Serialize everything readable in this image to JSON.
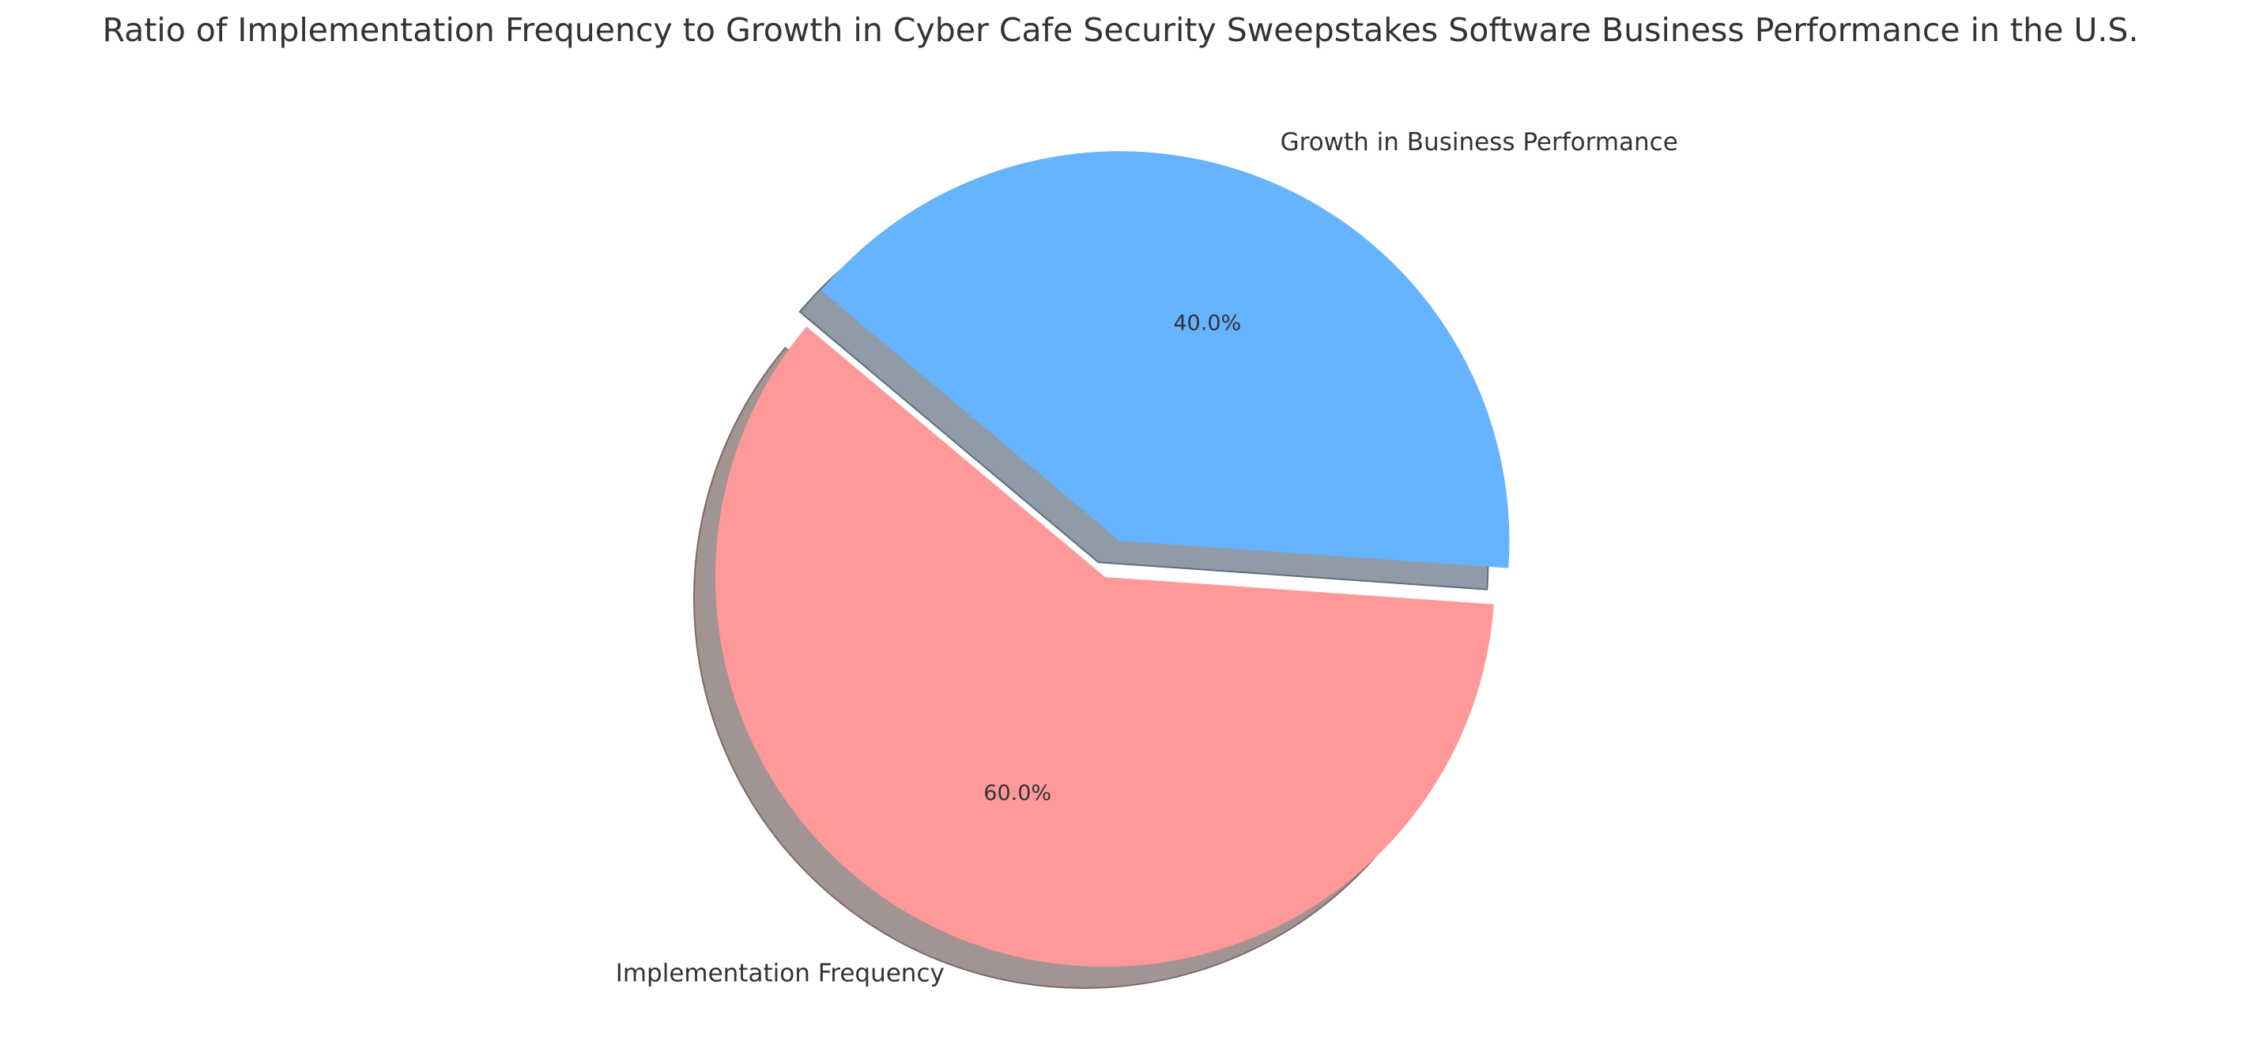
{
  "chart_data": {
    "type": "pie",
    "title": "Ratio of Implementation Frequency to Growth in Cyber Cafe Security Sweepstakes Software Business Performance in the U.S.",
    "categories": [
      "Implementation Frequency",
      "Growth in Business Performance"
    ],
    "values": [
      60,
      40
    ],
    "percent_labels": [
      "60.0%",
      "40.0%"
    ],
    "colors": [
      "#ff9999",
      "#66b3ff"
    ],
    "explode": [
      0,
      0.1
    ],
    "start_angle": 140,
    "shadow": true
  }
}
